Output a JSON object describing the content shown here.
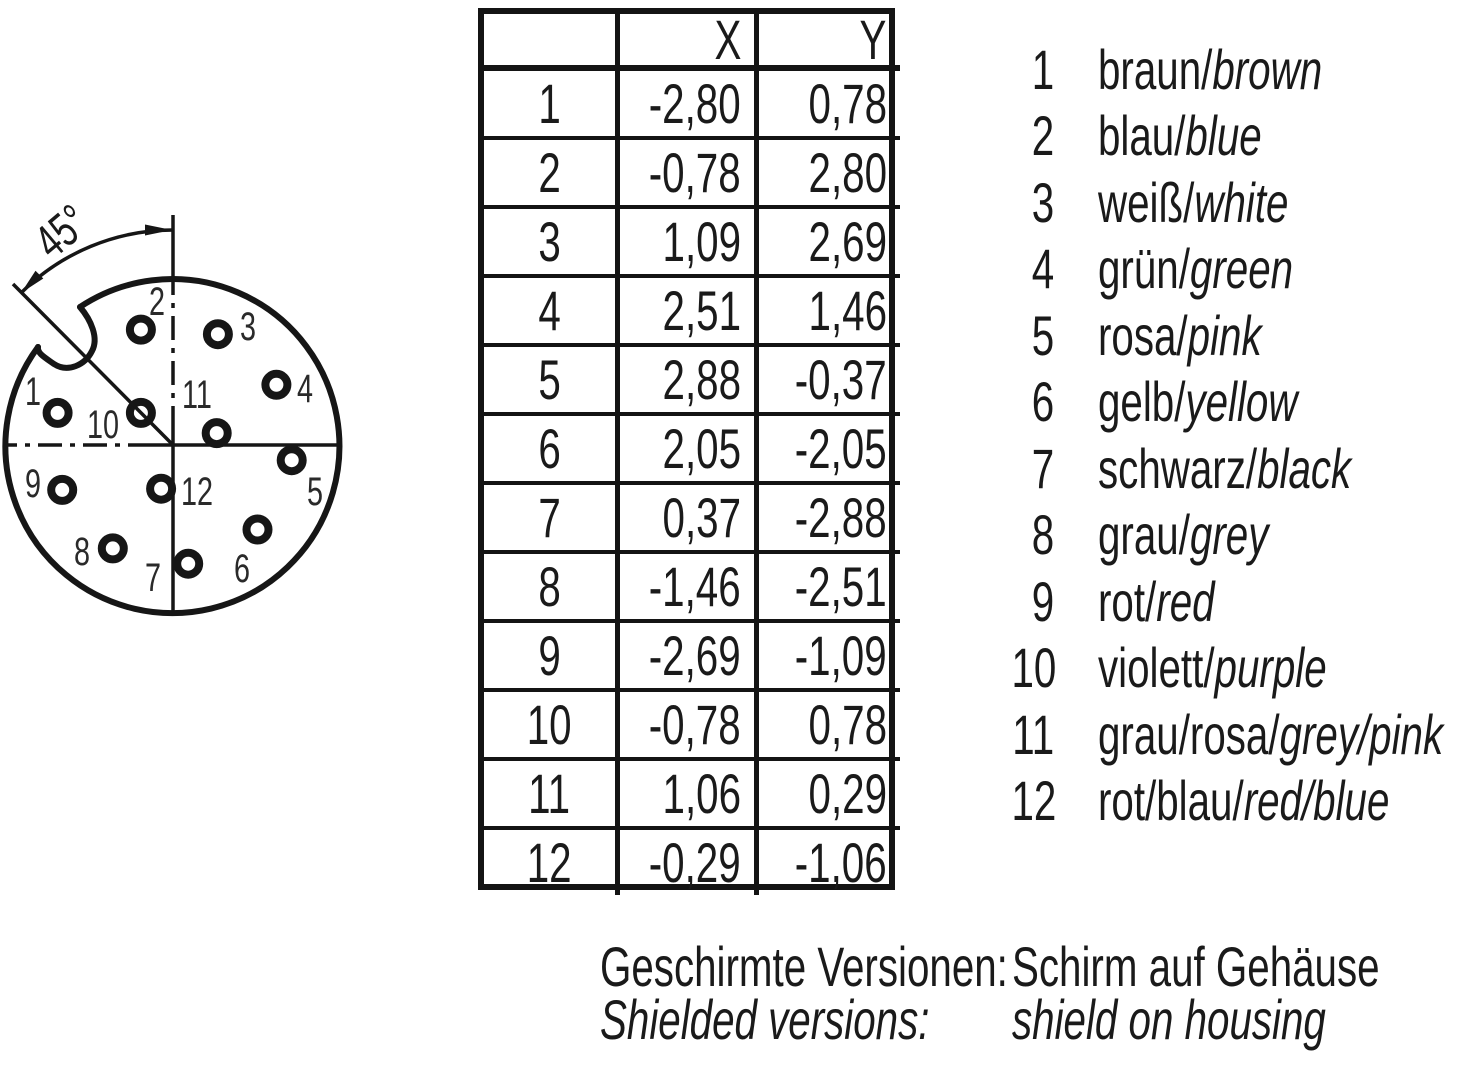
{
  "connector": {
    "angle_label": "45°"
  },
  "table": {
    "headers": {
      "x": "X",
      "y": "Y"
    },
    "rows": [
      {
        "pin": "1",
        "x": "-2,80",
        "y": "0,78"
      },
      {
        "pin": "2",
        "x": "-0,78",
        "y": "2,80"
      },
      {
        "pin": "3",
        "x": "1,09",
        "y": "2,69"
      },
      {
        "pin": "4",
        "x": "2,51",
        "y": "1,46"
      },
      {
        "pin": "5",
        "x": "2,88",
        "y": "-0,37"
      },
      {
        "pin": "6",
        "x": "2,05",
        "y": "-2,05"
      },
      {
        "pin": "7",
        "x": "0,37",
        "y": "-2,88"
      },
      {
        "pin": "8",
        "x": "-1,46",
        "y": "-2,51"
      },
      {
        "pin": "9",
        "x": "-2,69",
        "y": "-1,09"
      },
      {
        "pin": "10",
        "x": "-0,78",
        "y": "0,78"
      },
      {
        "pin": "11",
        "x": "1,06",
        "y": "0,29"
      },
      {
        "pin": "12",
        "x": "-0,29",
        "y": "-1,06"
      }
    ]
  },
  "legend": {
    "separator": "/",
    "items": [
      {
        "num": "1",
        "de": "braun",
        "en": "brown"
      },
      {
        "num": "2",
        "de": "blau",
        "en": "blue"
      },
      {
        "num": "3",
        "de": "weiß",
        "en": "white"
      },
      {
        "num": "4",
        "de": "grün",
        "en": "green"
      },
      {
        "num": "5",
        "de": "rosa",
        "en": "pink"
      },
      {
        "num": "6",
        "de": "gelb",
        "en": "yellow"
      },
      {
        "num": "7",
        "de": "schwarz",
        "en": "black"
      },
      {
        "num": "8",
        "de": "grau",
        "en": "grey"
      },
      {
        "num": "9",
        "de": "rot",
        "en": "red"
      },
      {
        "num": "10",
        "de": "violett",
        "en": "purple"
      },
      {
        "num": "11",
        "de": "grau/rosa",
        "en": "grey/pink"
      },
      {
        "num": "12",
        "de": "rot/blau",
        "en": "red/blue"
      }
    ]
  },
  "footer": {
    "de_label": "Geschirmte Versionen:",
    "de_value": "Schirm auf Gehäuse",
    "en_label": "Shielded versions:",
    "en_value": "shield on housing"
  }
}
